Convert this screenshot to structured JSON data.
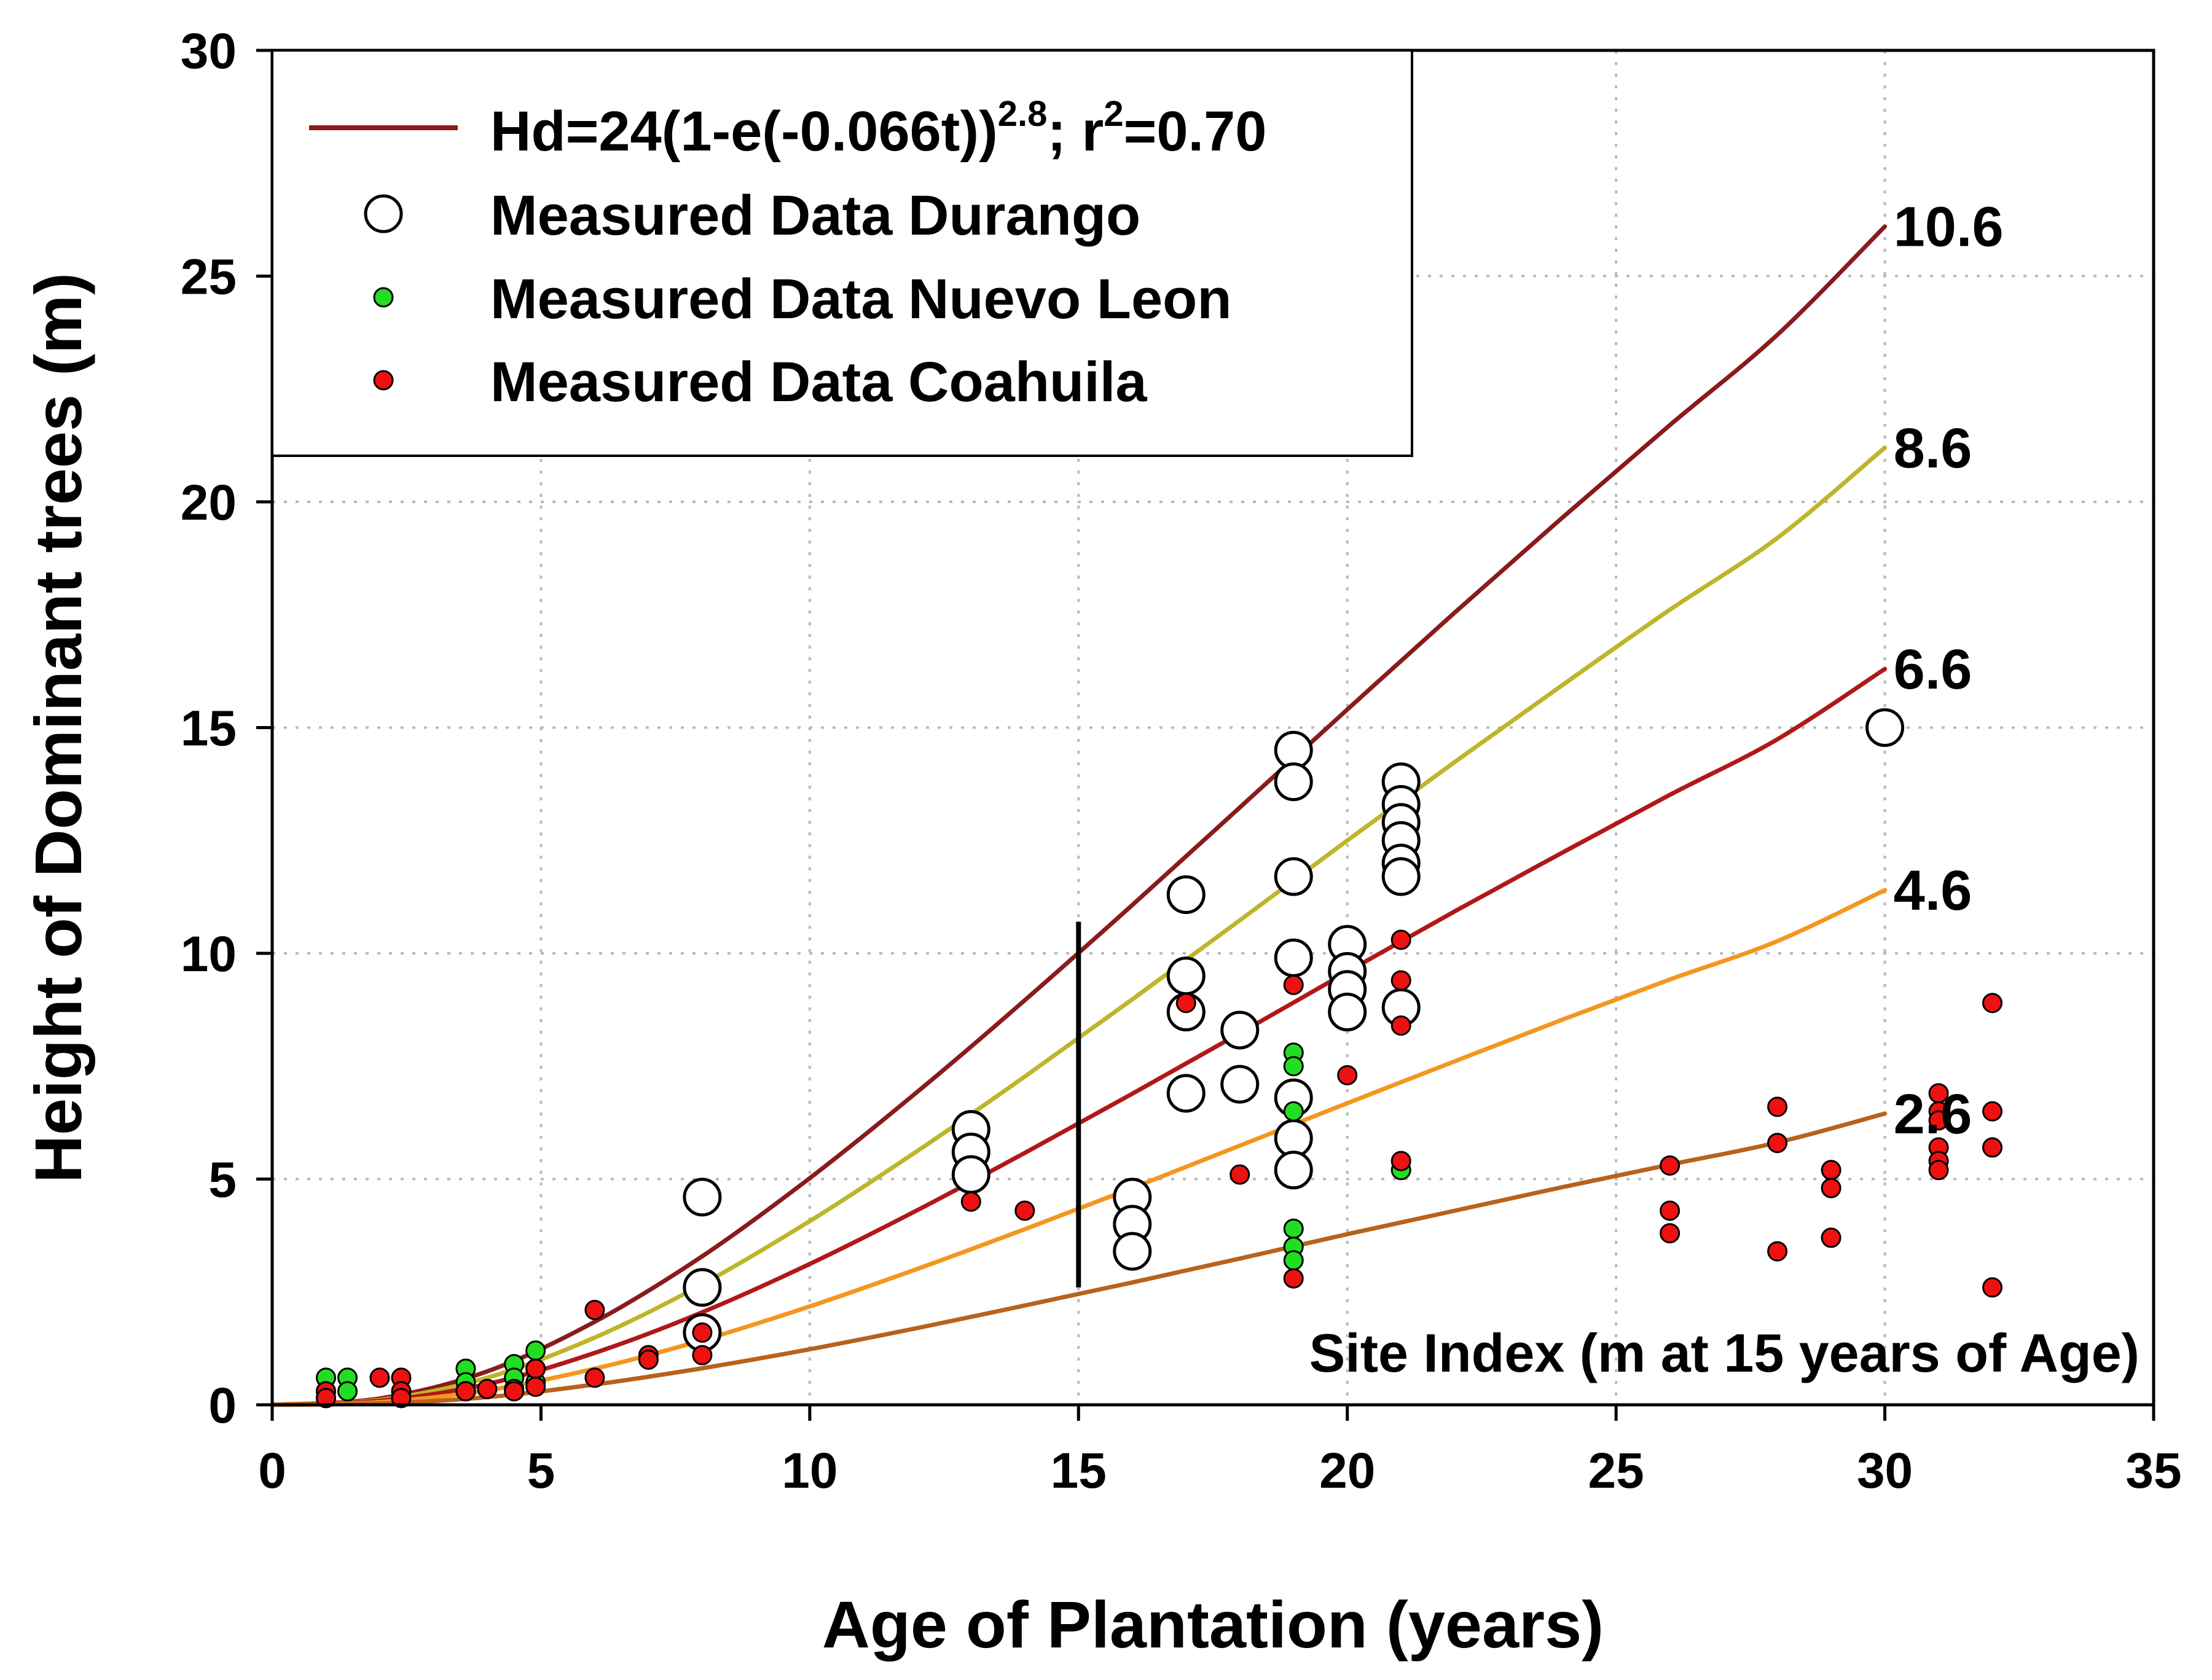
{
  "chart_data": {
    "type": "scatter",
    "xlabel": "Age of Plantation (years)",
    "ylabel": "Height of Dominant trees (m)",
    "xlim": [
      0,
      35
    ],
    "ylim": [
      0,
      30
    ],
    "xticks": [
      0,
      5,
      10,
      15,
      20,
      25,
      30,
      35
    ],
    "yticks": [
      0,
      5,
      10,
      15,
      20,
      25,
      30
    ],
    "grid": true,
    "legend_position": "top-left",
    "legend": {
      "model_prefix": "Hd=24(1-e(-0.066t))",
      "model_exp": "2.8",
      "model_mid": "; r",
      "model_r_exp": "2",
      "model_suffix": "=0.70",
      "durango": "Measured Data Durango",
      "nuevo_leon": "Measured Data Nuevo Leon",
      "coahuila": "Measured Data Coahuila"
    },
    "annotation": "Site Index (m at 15 years of Age)",
    "reference_line": {
      "x": 15,
      "y_from": 2.6,
      "y_to": 10.7
    },
    "curves": [
      {
        "label": "10.6",
        "color": "#8b1a1a",
        "points": [
          [
            0,
            0
          ],
          [
            2,
            0.14
          ],
          [
            4,
            0.74
          ],
          [
            6,
            1.84
          ],
          [
            8,
            3.29
          ],
          [
            10,
            5.02
          ],
          [
            12,
            6.93
          ],
          [
            14,
            8.96
          ],
          [
            16,
            11.07
          ],
          [
            18,
            13.23
          ],
          [
            20,
            15.4
          ],
          [
            22,
            17.55
          ],
          [
            24,
            19.65
          ],
          [
            26,
            21.7
          ],
          [
            28,
            23.7
          ],
          [
            30,
            26.1
          ]
        ]
      },
      {
        "label": "8.6",
        "color": "#bdb62a",
        "points": [
          [
            0,
            0
          ],
          [
            2,
            0.11
          ],
          [
            4,
            0.6
          ],
          [
            6,
            1.49
          ],
          [
            8,
            2.67
          ],
          [
            10,
            4.07
          ],
          [
            12,
            5.62
          ],
          [
            14,
            7.27
          ],
          [
            16,
            8.98
          ],
          [
            18,
            10.73
          ],
          [
            20,
            12.5
          ],
          [
            22,
            14.24
          ],
          [
            24,
            15.94
          ],
          [
            26,
            17.61
          ],
          [
            28,
            19.2
          ],
          [
            30,
            21.2
          ]
        ]
      },
      {
        "label": "6.6",
        "color": "#b01818",
        "points": [
          [
            0,
            0
          ],
          [
            2,
            0.09
          ],
          [
            4,
            0.46
          ],
          [
            6,
            1.15
          ],
          [
            8,
            2.05
          ],
          [
            10,
            3.12
          ],
          [
            12,
            4.31
          ],
          [
            14,
            5.58
          ],
          [
            16,
            6.89
          ],
          [
            18,
            8.23
          ],
          [
            20,
            9.59
          ],
          [
            22,
            10.93
          ],
          [
            24,
            12.23
          ],
          [
            26,
            13.51
          ],
          [
            28,
            14.74
          ],
          [
            30,
            16.3
          ]
        ]
      },
      {
        "label": "4.6",
        "color": "#f5961e",
        "points": [
          [
            0,
            0
          ],
          [
            2,
            0.06
          ],
          [
            4,
            0.32
          ],
          [
            6,
            0.8
          ],
          [
            8,
            1.43
          ],
          [
            10,
            2.18
          ],
          [
            12,
            3.01
          ],
          [
            14,
            3.89
          ],
          [
            16,
            4.8
          ],
          [
            18,
            5.74
          ],
          [
            20,
            6.68
          ],
          [
            22,
            7.61
          ],
          [
            24,
            8.53
          ],
          [
            26,
            9.42
          ],
          [
            28,
            10.27
          ],
          [
            30,
            11.4
          ]
        ]
      },
      {
        "label": "2.6",
        "color": "#b8621b",
        "points": [
          [
            0,
            0
          ],
          [
            2,
            0.03
          ],
          [
            4,
            0.17
          ],
          [
            6,
            0.45
          ],
          [
            8,
            0.81
          ],
          [
            10,
            1.23
          ],
          [
            12,
            1.7
          ],
          [
            14,
            2.2
          ],
          [
            16,
            2.71
          ],
          [
            18,
            3.24
          ],
          [
            20,
            3.78
          ],
          [
            22,
            4.3
          ],
          [
            24,
            4.82
          ],
          [
            26,
            5.32
          ],
          [
            28,
            5.81
          ],
          [
            30,
            6.45
          ]
        ]
      }
    ],
    "series": [
      {
        "name": "Measured Data Durango",
        "marker": "open-circle-large",
        "points": [
          [
            8,
            4.6
          ],
          [
            8,
            2.6
          ],
          [
            8,
            1.6
          ],
          [
            13,
            6.1
          ],
          [
            13,
            5.6
          ],
          [
            13,
            5.1
          ],
          [
            16,
            4.6
          ],
          [
            16,
            4.0
          ],
          [
            16,
            3.4
          ],
          [
            17,
            11.3
          ],
          [
            17,
            9.5
          ],
          [
            17,
            8.7
          ],
          [
            17,
            6.9
          ],
          [
            18,
            8.3
          ],
          [
            18,
            7.1
          ],
          [
            19,
            14.5
          ],
          [
            19,
            13.8
          ],
          [
            19,
            11.7
          ],
          [
            19,
            9.9
          ],
          [
            19,
            6.8
          ],
          [
            19,
            5.9
          ],
          [
            19,
            5.2
          ],
          [
            20,
            10.2
          ],
          [
            20,
            9.6
          ],
          [
            20,
            9.2
          ],
          [
            20,
            8.7
          ],
          [
            21,
            13.8
          ],
          [
            21,
            13.3
          ],
          [
            21,
            12.9
          ],
          [
            21,
            12.5
          ],
          [
            21,
            12.0
          ],
          [
            21,
            11.7
          ],
          [
            21,
            8.8
          ],
          [
            30,
            15.0
          ]
        ]
      },
      {
        "name": "Measured Data Nuevo Leon",
        "marker": "green-dot",
        "points": [
          [
            1,
            0.6
          ],
          [
            1,
            0.3
          ],
          [
            1,
            0.15
          ],
          [
            1.4,
            0.6
          ],
          [
            1.4,
            0.3
          ],
          [
            3.6,
            0.8
          ],
          [
            3.6,
            0.5
          ],
          [
            3.6,
            0.3
          ],
          [
            4.5,
            0.9
          ],
          [
            4.5,
            0.6
          ],
          [
            4.5,
            0.35
          ],
          [
            4.9,
            1.2
          ],
          [
            4.9,
            0.8
          ],
          [
            4.9,
            0.5
          ],
          [
            19,
            7.8
          ],
          [
            19,
            7.5
          ],
          [
            19,
            6.5
          ],
          [
            19,
            3.9
          ],
          [
            19,
            3.5
          ],
          [
            19,
            3.2
          ],
          [
            21,
            5.2
          ]
        ]
      },
      {
        "name": "Measured Data Coahuila",
        "marker": "red-dot",
        "points": [
          [
            1,
            0.3
          ],
          [
            1,
            0.15
          ],
          [
            2,
            0.6
          ],
          [
            2.4,
            0.6
          ],
          [
            2.4,
            0.3
          ],
          [
            2.4,
            0.15
          ],
          [
            3.6,
            0.3
          ],
          [
            4,
            0.35
          ],
          [
            4.5,
            0.3
          ],
          [
            4.9,
            0.8
          ],
          [
            4.9,
            0.4
          ],
          [
            6,
            2.1
          ],
          [
            6,
            0.6
          ],
          [
            7,
            1.1
          ],
          [
            7,
            1.0
          ],
          [
            8,
            1.6
          ],
          [
            8,
            1.1
          ],
          [
            13,
            4.5
          ],
          [
            14,
            4.3
          ],
          [
            17,
            8.9
          ],
          [
            18,
            5.1
          ],
          [
            19,
            9.3
          ],
          [
            19,
            2.8
          ],
          [
            20,
            7.3
          ],
          [
            21,
            10.3
          ],
          [
            21,
            9.4
          ],
          [
            21,
            8.4
          ],
          [
            21,
            5.4
          ],
          [
            26,
            5.3
          ],
          [
            26,
            4.3
          ],
          [
            26,
            3.8
          ],
          [
            28,
            6.6
          ],
          [
            28,
            5.8
          ],
          [
            28,
            3.4
          ],
          [
            29,
            5.2
          ],
          [
            29,
            4.8
          ],
          [
            29,
            3.7
          ],
          [
            31,
            6.9
          ],
          [
            31,
            6.5
          ],
          [
            31,
            6.3
          ],
          [
            31,
            5.7
          ],
          [
            31,
            5.4
          ],
          [
            31,
            5.2
          ],
          [
            32,
            8.9
          ],
          [
            32,
            6.5
          ],
          [
            32,
            5.7
          ],
          [
            32,
            2.6
          ]
        ]
      }
    ]
  }
}
